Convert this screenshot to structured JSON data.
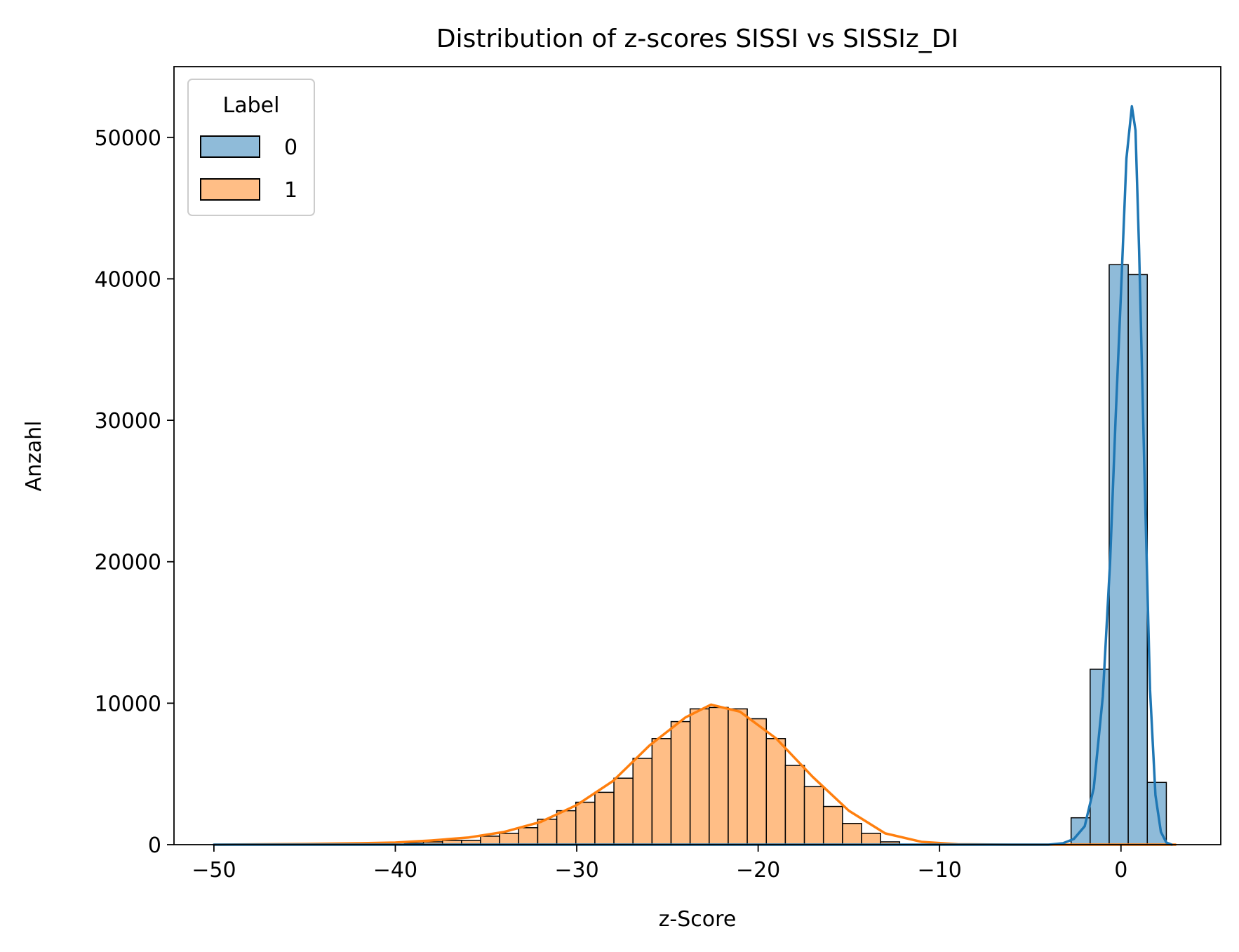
{
  "chart_data": {
    "type": "bar",
    "title": "Distribution of z-scores SISSI vs SISSIz_DI",
    "xlabel": "z-Score",
    "ylabel": "Anzahl",
    "xlim": [
      -52.2,
      5.5
    ],
    "ylim": [
      0,
      55000
    ],
    "xticks": [
      -50,
      -40,
      -30,
      -20,
      -10,
      0
    ],
    "xtick_labels": [
      "−50",
      "−40",
      "−30",
      "−20",
      "−10",
      "0"
    ],
    "yticks": [
      0,
      10000,
      20000,
      30000,
      40000,
      50000
    ],
    "ytick_labels": [
      "0",
      "10000",
      "20000",
      "30000",
      "40000",
      "50000"
    ],
    "grid": false,
    "legend": {
      "title": "Label",
      "placement": "top-left"
    },
    "bin_edges": [
      -50.0,
      -48.95,
      -47.9,
      -46.85,
      -45.8,
      -44.75,
      -43.7,
      -42.65,
      -41.6,
      -40.55,
      -39.5,
      -38.45,
      -37.4,
      -36.35,
      -35.3,
      -34.25,
      -33.2,
      -32.15,
      -31.1,
      -30.05,
      -29.0,
      -27.95,
      -26.9,
      -25.85,
      -24.8,
      -23.75,
      -22.7,
      -21.65,
      -20.6,
      -19.55,
      -18.5,
      -17.45,
      -16.4,
      -15.35,
      -14.3,
      -13.25,
      -12.2,
      -11.15,
      -10.1,
      -9.05,
      -8.0,
      -6.95,
      -5.9,
      -4.85,
      -3.8,
      -2.75,
      -1.7,
      -0.65,
      0.4,
      1.45,
      2.5
    ],
    "series": [
      {
        "name": "0",
        "color": "#1f77b4",
        "fill": "#8fbbd9",
        "bins": [
          [
            -2.75,
            -1.7,
            1900
          ],
          [
            -1.7,
            -0.65,
            12400
          ],
          [
            -0.65,
            0.4,
            41000
          ],
          [
            0.4,
            1.45,
            40300
          ],
          [
            1.45,
            2.5,
            4400
          ]
        ],
        "kde_x": [
          -50,
          -10,
          -4,
          -3.2,
          -2.6,
          -2.0,
          -1.5,
          -1.0,
          -0.6,
          -0.3,
          0.0,
          0.3,
          0.6,
          0.8,
          1.0,
          1.3,
          1.6,
          1.9,
          2.2,
          2.5,
          2.8
        ],
        "kde_y": [
          0,
          0,
          0,
          100,
          400,
          1300,
          4000,
          10500,
          20000,
          30000,
          39000,
          48500,
          52200,
          50500,
          42000,
          26000,
          11000,
          3500,
          900,
          150,
          0
        ]
      },
      {
        "name": "1",
        "color": "#ff7f0e",
        "fill": "#ffbe86",
        "bins": [
          [
            -39.5,
            -38.45,
            100
          ],
          [
            -38.45,
            -37.4,
            200
          ],
          [
            -37.4,
            -36.35,
            300
          ],
          [
            -36.35,
            -35.3,
            300
          ],
          [
            -35.3,
            -34.25,
            600
          ],
          [
            -34.25,
            -33.2,
            800
          ],
          [
            -33.2,
            -32.15,
            1200
          ],
          [
            -32.15,
            -31.1,
            1800
          ],
          [
            -31.1,
            -30.05,
            2400
          ],
          [
            -30.05,
            -29.0,
            3000
          ],
          [
            -29.0,
            -27.95,
            3700
          ],
          [
            -27.95,
            -26.9,
            4700
          ],
          [
            -26.9,
            -25.85,
            6100
          ],
          [
            -25.85,
            -24.8,
            7500
          ],
          [
            -24.8,
            -23.75,
            8700
          ],
          [
            -23.75,
            -22.7,
            9600
          ],
          [
            -22.7,
            -21.65,
            9700
          ],
          [
            -21.65,
            -20.6,
            9600
          ],
          [
            -20.6,
            -19.55,
            8900
          ],
          [
            -19.55,
            -18.5,
            7500
          ],
          [
            -18.5,
            -17.45,
            5600
          ],
          [
            -17.45,
            -16.4,
            4100
          ],
          [
            -16.4,
            -15.35,
            2700
          ],
          [
            -15.35,
            -14.3,
            1500
          ],
          [
            -14.3,
            -13.25,
            800
          ],
          [
            -13.25,
            -12.2,
            200
          ]
        ],
        "kde_x": [
          -50,
          -45,
          -42,
          -40,
          -38,
          -36,
          -34,
          -32,
          -30,
          -28,
          -26,
          -24,
          -22.6,
          -21,
          -19,
          -17,
          -15,
          -13,
          -11,
          -9,
          -6,
          -3,
          0,
          3
        ],
        "kde_y": [
          0,
          50,
          100,
          150,
          300,
          500,
          900,
          1600,
          2800,
          4500,
          7000,
          9000,
          9900,
          9400,
          7500,
          4800,
          2400,
          800,
          200,
          30,
          0,
          0,
          0,
          0
        ]
      }
    ]
  }
}
